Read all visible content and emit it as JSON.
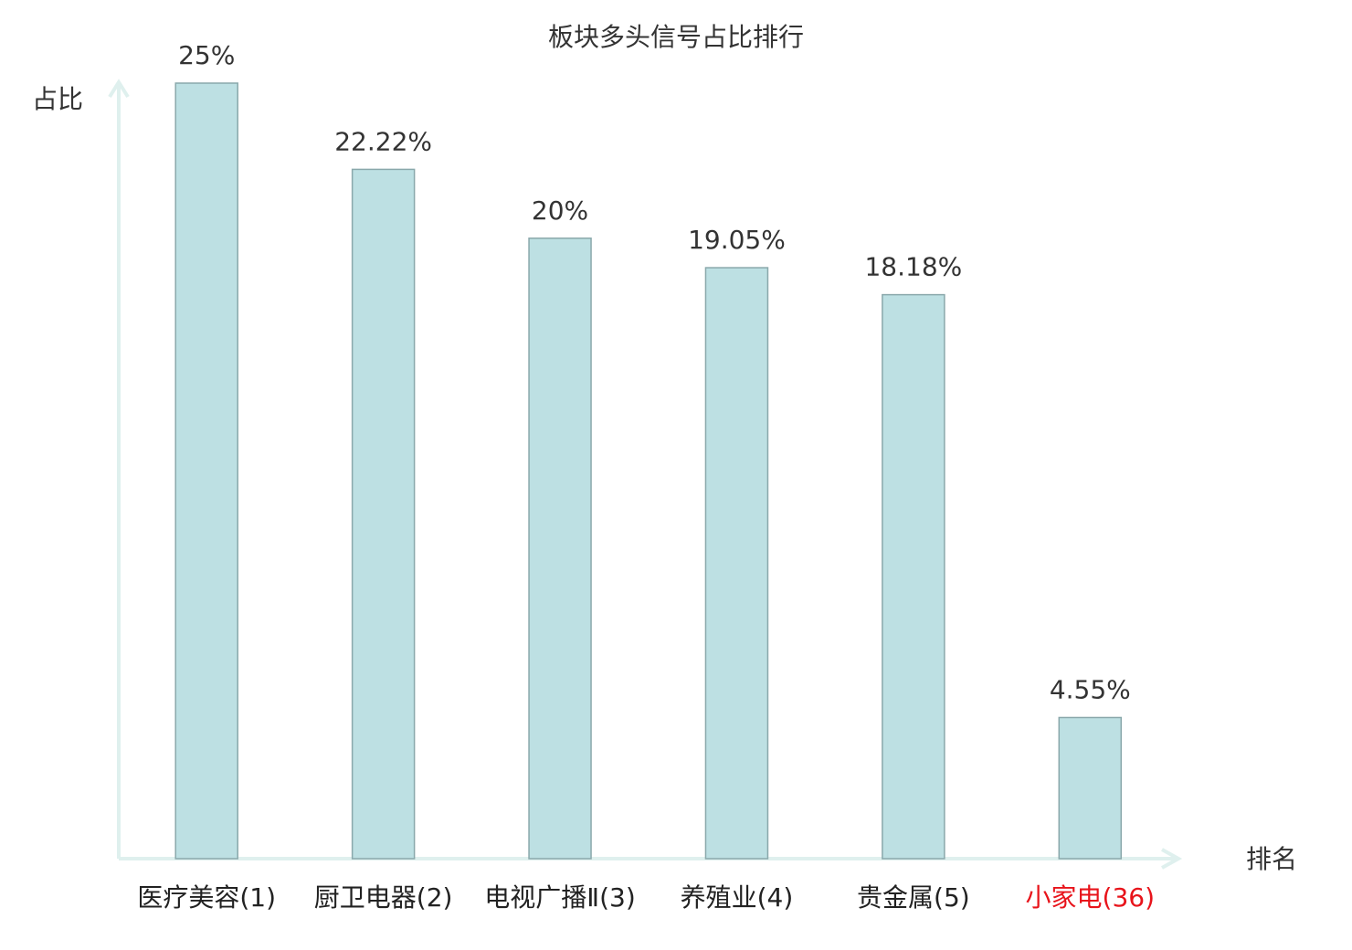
{
  "chart_data": {
    "type": "bar",
    "title": "板块多头信号占比排行",
    "y_label": "占比",
    "x_label": "排名",
    "categories": [
      "医疗美容(1)",
      "厨卫电器(2)",
      "电视广播Ⅱ(3)",
      "养殖业(4)",
      "贵金属(5)",
      "小家电(36)"
    ],
    "values": [
      25,
      22.22,
      20,
      19.05,
      18.18,
      4.55
    ],
    "value_labels": [
      "25%",
      "22.22%",
      "20%",
      "19.05%",
      "18.18%",
      "4.55%"
    ],
    "color": "#bde0e3",
    "edge_color": "#8aa8ab",
    "label_colors": [
      "#222222",
      "#222222",
      "#222222",
      "#222222",
      "#222222",
      "#e8141b"
    ],
    "ylim": [
      0,
      25
    ]
  }
}
